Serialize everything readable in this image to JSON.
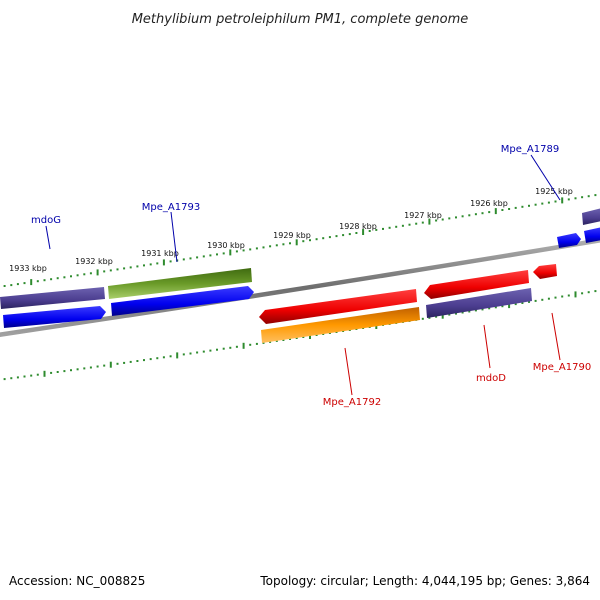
{
  "title": "Methylibium petroleiphilum PM1, complete genome",
  "footer": {
    "accession": "Accession: NC_008825",
    "summary": "Topology: circular; Length: 4,044,195 bp; Genes: 3,864"
  },
  "colors": {
    "backbone": "#808080",
    "tick_dots": "#2e8b2e",
    "forward_label": "#0000aa",
    "reverse_label": "#cc0000",
    "blue_gene": "#0000ee",
    "purple_gene": "#4b3d8f",
    "olive_gene": "#5e8a1e",
    "red_gene": "#ee0000",
    "orange_gene": "#ff9900"
  },
  "scale_labels": [
    "1933 kbp",
    "1932 kbp",
    "1931 kbp",
    "1930 kbp",
    "1929 kbp",
    "1928 kbp",
    "1927 kbp",
    "1926 kbp",
    "1925 kbp"
  ],
  "gene_labels": {
    "mdoG": "mdoG",
    "mpe_a1793": "Mpe_A1793",
    "mpe_a1789": "Mpe_A1789",
    "mpe_a1792": "Mpe_A1792",
    "mdoD": "mdoD",
    "mpe_a1790": "Mpe_A1790"
  }
}
